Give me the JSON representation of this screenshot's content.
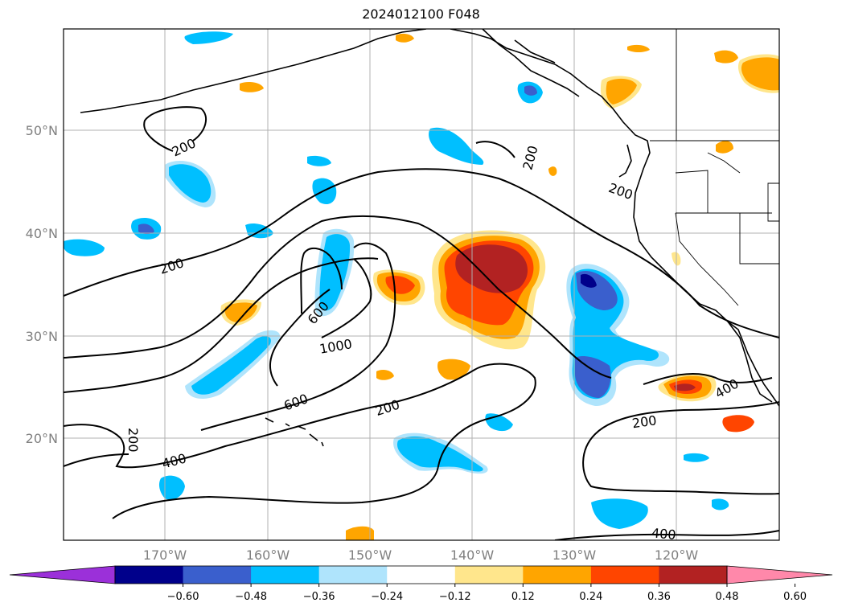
{
  "title": "2024012100 F048",
  "lat_labels": [
    "50°N",
    "40°N",
    "30°N",
    "20°N"
  ],
  "lon_labels": [
    "170°W",
    "160°W",
    "150°W",
    "140°W",
    "130°W",
    "120°W"
  ],
  "colorbar": {
    "colors": [
      "#9b30d9",
      "#00008b",
      "#3a5fcd",
      "#00bfff",
      "#afe4fc",
      "#ffffff",
      "#ffe68c",
      "#ffa500",
      "#ff4500",
      "#b22222",
      "#ff88aa"
    ],
    "tick_labels": [
      "−0.60",
      "−0.48",
      "−0.36",
      "−0.24",
      "−0.12",
      "0.12",
      "0.24",
      "0.36",
      "0.48",
      "0.60"
    ]
  },
  "contour_labels": {
    "c200_nw": "200",
    "c200_n": "200",
    "c200_coast": "200",
    "c200_w": "200",
    "c600_a": "600",
    "c1000": "1000",
    "c600_b": "600",
    "c200_mid": "200",
    "c200_sw": "200",
    "c400_sw": "400",
    "c200_e": "200",
    "c400_e": "400",
    "c400_s": "400"
  },
  "layers": {
    "gridlines": "gray",
    "coastlines": "black",
    "state_borders": "black",
    "filled_field": "diverging shaded anomalies",
    "contour_field": "black lines"
  }
}
